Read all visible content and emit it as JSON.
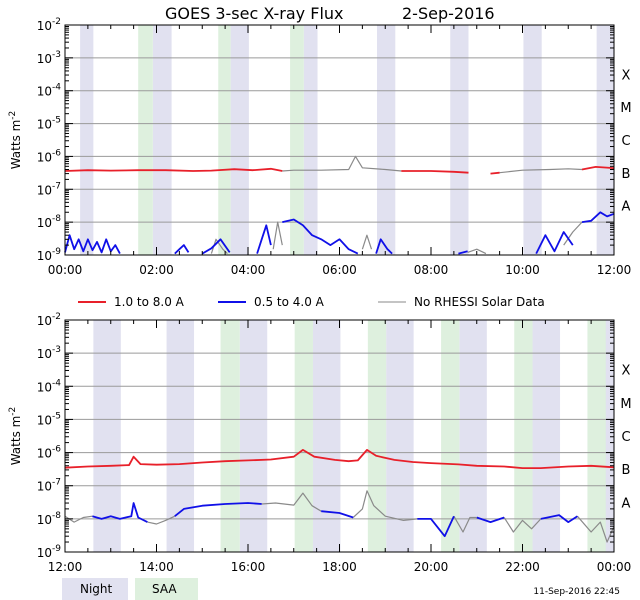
{
  "title": "GOES 3-sec X-ray Flux",
  "date": "2-Sep-2016",
  "footer_timestamp": "11-Sep-2016 22:45",
  "colors": {
    "long": "#e8202a",
    "short": "#1010e8",
    "no_rhessi": "#8a8a8a",
    "night": "#e1e1f0",
    "saa": "#def0de",
    "grid": "#9a9a9a"
  },
  "legend": {
    "long_label": "1.0 to 8.0 A",
    "short_label": "0.5 to 4.0 A",
    "no_rhessi_label": "No RHESSI Solar Data",
    "night_label": "Night",
    "saa_label": "SAA"
  },
  "chart_data": [
    {
      "type": "line",
      "id": "top",
      "title": "GOES 3-sec X-ray Flux 2-Sep-2016",
      "ylabel": "Watts m-2",
      "yscale": "log",
      "ylim": [
        1e-09,
        0.01
      ],
      "xlim": [
        0,
        12
      ],
      "ytick_exponents": [
        -9,
        -8,
        -7,
        -6,
        -5,
        -4,
        -3,
        -2
      ],
      "xticks": [
        0,
        2,
        4,
        6,
        8,
        10,
        12
      ],
      "xtick_labels": [
        "00:00",
        "02:00",
        "04:00",
        "06:00",
        "08:00",
        "10:00",
        "12:00"
      ],
      "class_labels": [
        {
          "label": "A",
          "exp": -8
        },
        {
          "label": "B",
          "exp": -7
        },
        {
          "label": "C",
          "exp": -6
        },
        {
          "label": "M",
          "exp": -5
        },
        {
          "label": "X",
          "exp": -4
        }
      ],
      "night": [
        [
          0.33,
          0.62
        ],
        [
          1.92,
          2.33
        ],
        [
          3.62,
          4.02
        ],
        [
          5.22,
          5.52
        ],
        [
          6.82,
          7.22
        ],
        [
          8.42,
          8.82
        ],
        [
          10.02,
          10.42
        ],
        [
          11.62,
          12.0
        ]
      ],
      "saa": [
        [
          1.6,
          1.92
        ],
        [
          3.35,
          3.62
        ],
        [
          4.92,
          5.22
        ]
      ],
      "long": {
        "name": "1.0 to 8.0 A",
        "segments": [
          [
            [
              0.0,
              3.6e-07
            ],
            [
              0.5,
              3.8e-07
            ],
            [
              1.0,
              3.7e-07
            ],
            [
              1.6,
              3.8e-07
            ],
            [
              2.2,
              3.8e-07
            ],
            [
              2.8,
              3.6e-07
            ],
            [
              3.2,
              3.7e-07
            ],
            [
              3.7,
              4.1e-07
            ],
            [
              4.1,
              3.8e-07
            ],
            [
              4.5,
              4.2e-07
            ],
            [
              4.75,
              3.6e-07
            ]
          ],
          [
            [
              7.35,
              3.6e-07
            ],
            [
              8.0,
              3.6e-07
            ],
            [
              8.5,
              3.4e-07
            ],
            [
              8.82,
              3.2e-07
            ]
          ],
          [
            [
              9.3,
              3e-07
            ],
            [
              9.5,
              3.2e-07
            ]
          ],
          [
            [
              11.3,
              4e-07
            ],
            [
              11.6,
              4.8e-07
            ],
            [
              12.0,
              4.4e-07
            ]
          ]
        ]
      },
      "short": {
        "name": "0.5 to 4.0 A",
        "segments": [
          [
            [
              0.0,
              1.2e-09
            ],
            [
              0.1,
              4e-09
            ],
            [
              0.2,
              1.5e-09
            ],
            [
              0.3,
              3e-09
            ],
            [
              0.4,
              1.3e-09
            ],
            [
              0.5,
              3e-09
            ],
            [
              0.6,
              1.4e-09
            ],
            [
              0.7,
              2.5e-09
            ],
            [
              0.8,
              1.2e-09
            ],
            [
              0.9,
              3e-09
            ],
            [
              1.0,
              1.3e-09
            ],
            [
              1.1,
              2e-09
            ],
            [
              1.2,
              1.1e-09
            ]
          ],
          [
            [
              2.4,
              1.1e-09
            ],
            [
              2.5,
              1.5e-09
            ],
            [
              2.6,
              2e-09
            ],
            [
              2.7,
              1.2e-09
            ]
          ],
          [
            [
              3.0,
              1.1e-09
            ],
            [
              3.2,
              1.6e-09
            ],
            [
              3.4,
              3e-09
            ],
            [
              3.6,
              1.2e-09
            ]
          ],
          [
            [
              4.2,
              1.1e-09
            ],
            [
              4.3,
              3e-09
            ],
            [
              4.4,
              8e-09
            ],
            [
              4.5,
              2e-09
            ]
          ],
          [
            [
              4.75,
              1e-08
            ],
            [
              5.0,
              1.2e-08
            ],
            [
              5.2,
              8e-09
            ],
            [
              5.4,
              4e-09
            ],
            [
              5.6,
              3e-09
            ],
            [
              5.8,
              2e-09
            ],
            [
              6.0,
              3e-09
            ],
            [
              6.2,
              1.5e-09
            ],
            [
              6.4,
              1.1e-09
            ]
          ],
          [
            [
              6.8,
              1.1e-09
            ],
            [
              6.9,
              3e-09
            ],
            [
              7.05,
              1.5e-09
            ],
            [
              7.15,
              1.1e-09
            ]
          ],
          [
            [
              8.6,
              1.1e-09
            ],
            [
              8.8,
              1.3e-09
            ]
          ],
          [
            [
              10.3,
              1.1e-09
            ],
            [
              10.5,
              4e-09
            ],
            [
              10.7,
              1.3e-09
            ],
            [
              10.9,
              5e-09
            ],
            [
              11.1,
              2e-09
            ]
          ],
          [
            [
              11.3,
              1e-08
            ],
            [
              11.5,
              1.1e-08
            ],
            [
              11.7,
              2e-08
            ],
            [
              11.85,
              1.5e-08
            ],
            [
              12.0,
              1.8e-08
            ]
          ]
        ]
      },
      "no_rhessi": {
        "name": "No RHESSI Solar Data",
        "segments": [
          [
            [
              4.75,
              3.6e-07
            ],
            [
              5.0,
              3.8e-07
            ],
            [
              5.6,
              3.8e-07
            ],
            [
              6.2,
              4e-07
            ],
            [
              6.35,
              1e-06
            ],
            [
              6.5,
              4.5e-07
            ],
            [
              7.0,
              4e-07
            ],
            [
              7.35,
              3.6e-07
            ]
          ],
          [
            [
              9.5,
              3.2e-07
            ],
            [
              10.0,
              3.8e-07
            ],
            [
              10.6,
              4e-07
            ],
            [
              11.0,
              4.2e-07
            ],
            [
              11.3,
              4e-07
            ]
          ],
          [
            [
              3.2,
              1.1e-09
            ],
            [
              3.3,
              3e-09
            ],
            [
              3.45,
              1.5e-09
            ],
            [
              3.55,
              1.1e-09
            ]
          ],
          [
            [
              4.55,
              1.5e-09
            ],
            [
              4.65,
              1e-08
            ],
            [
              4.75,
              2e-09
            ]
          ],
          [
            [
              6.5,
              1.5e-09
            ],
            [
              6.6,
              4e-09
            ],
            [
              6.7,
              1.5e-09
            ]
          ],
          [
            [
              8.8,
              1.2e-09
            ],
            [
              9.0,
              1.5e-09
            ],
            [
              9.2,
              1.1e-09
            ]
          ],
          [
            [
              10.9,
              2e-09
            ],
            [
              11.1,
              5e-09
            ],
            [
              11.3,
              1e-08
            ]
          ]
        ]
      }
    },
    {
      "type": "line",
      "id": "bottom",
      "ylabel": "Watts m-2",
      "yscale": "log",
      "ylim": [
        1e-09,
        0.01
      ],
      "xlim": [
        12,
        24
      ],
      "ytick_exponents": [
        -9,
        -8,
        -7,
        -6,
        -5,
        -4,
        -3,
        -2
      ],
      "xticks": [
        12,
        14,
        16,
        18,
        20,
        22,
        24
      ],
      "xtick_labels": [
        "12:00",
        "14:00",
        "16:00",
        "18:00",
        "20:00",
        "22:00",
        "00:00"
      ],
      "class_labels": [
        {
          "label": "A",
          "exp": -8
        },
        {
          "label": "B",
          "exp": -7
        },
        {
          "label": "C",
          "exp": -6
        },
        {
          "label": "M",
          "exp": -5
        },
        {
          "label": "X",
          "exp": -4
        }
      ],
      "night": [
        [
          12.62,
          13.22
        ],
        [
          14.22,
          14.82
        ],
        [
          15.82,
          16.42
        ],
        [
          17.42,
          18.02
        ],
        [
          19.02,
          19.62
        ],
        [
          20.62,
          21.22
        ],
        [
          22.22,
          22.82
        ],
        [
          23.42,
          24.0
        ]
      ],
      "saa": [
        [
          15.4,
          15.82
        ],
        [
          17.02,
          17.42
        ],
        [
          18.62,
          19.02
        ],
        [
          20.22,
          20.62
        ],
        [
          21.82,
          22.22
        ],
        [
          23.42,
          23.82
        ]
      ],
      "long": {
        "name": "1.0 to 8.0 A",
        "segments": [
          [
            [
              12.0,
              3.5e-07
            ],
            [
              12.5,
              3.8e-07
            ],
            [
              13.0,
              4e-07
            ],
            [
              13.4,
              4.2e-07
            ],
            [
              13.5,
              7.5e-07
            ],
            [
              13.65,
              4.5e-07
            ],
            [
              14.0,
              4.3e-07
            ],
            [
              14.5,
              4.5e-07
            ],
            [
              15.0,
              5e-07
            ],
            [
              15.5,
              5.5e-07
            ],
            [
              16.0,
              5.8e-07
            ],
            [
              16.5,
              6.2e-07
            ],
            [
              17.0,
              7.5e-07
            ],
            [
              17.2,
              1.2e-06
            ],
            [
              17.45,
              7.5e-07
            ],
            [
              17.9,
              6e-07
            ],
            [
              18.2,
              5.5e-07
            ],
            [
              18.4,
              5.8e-07
            ],
            [
              18.6,
              1.2e-06
            ],
            [
              18.8,
              8e-07
            ],
            [
              19.2,
              6e-07
            ],
            [
              19.6,
              5.2e-07
            ],
            [
              20.0,
              4.8e-07
            ],
            [
              20.6,
              4.4e-07
            ],
            [
              21.0,
              4e-07
            ],
            [
              21.6,
              3.8e-07
            ],
            [
              22.0,
              3.4e-07
            ],
            [
              22.4,
              3.4e-07
            ],
            [
              23.0,
              3.8e-07
            ],
            [
              23.5,
              4e-07
            ],
            [
              24.0,
              3.6e-07
            ]
          ]
        ]
      },
      "short": {
        "name": "0.5 to 4.0 A",
        "segments": [
          [
            [
              12.6,
              1.2e-08
            ],
            [
              12.8,
              1e-08
            ],
            [
              13.0,
              1.2e-08
            ],
            [
              13.2,
              1e-08
            ],
            [
              13.45,
              1.2e-08
            ],
            [
              13.5,
              3e-08
            ],
            [
              13.6,
              1.1e-08
            ],
            [
              13.8,
              8e-09
            ]
          ],
          [
            [
              14.4,
              1.2e-08
            ],
            [
              14.6,
              2e-08
            ],
            [
              15.0,
              2.5e-08
            ],
            [
              15.5,
              2.8e-08
            ],
            [
              16.0,
              3e-08
            ],
            [
              16.3,
              2.8e-08
            ]
          ],
          [
            [
              17.6,
              1.7e-08
            ],
            [
              18.0,
              1.5e-08
            ],
            [
              18.3,
              1.1e-08
            ]
          ],
          [
            [
              19.7,
              1e-08
            ],
            [
              20.0,
              1e-08
            ],
            [
              20.3,
              3e-09
            ],
            [
              20.5,
              1.2e-08
            ]
          ],
          [
            [
              21.0,
              1.1e-08
            ],
            [
              21.3,
              8e-09
            ],
            [
              21.6,
              1.1e-08
            ]
          ],
          [
            [
              22.4,
              1e-08
            ],
            [
              22.8,
              1.3e-08
            ],
            [
              23.0,
              8e-09
            ],
            [
              23.2,
              1.2e-08
            ]
          ]
        ]
      },
      "no_rhessi": {
        "name": "No RHESSI Solar Data",
        "segments": [
          [
            [
              12.0,
              1.2e-08
            ],
            [
              12.2,
              8e-09
            ],
            [
              12.4,
              1.1e-08
            ],
            [
              12.6,
              1.2e-08
            ]
          ],
          [
            [
              13.8,
              8e-09
            ],
            [
              14.0,
              7e-09
            ],
            [
              14.2,
              9e-09
            ],
            [
              14.4,
              1.2e-08
            ]
          ],
          [
            [
              16.3,
              2.8e-08
            ],
            [
              16.6,
              3e-08
            ],
            [
              17.0,
              2.6e-08
            ],
            [
              17.2,
              6e-08
            ],
            [
              17.4,
              2.5e-08
            ],
            [
              17.6,
              1.7e-08
            ]
          ],
          [
            [
              18.3,
              1.1e-08
            ],
            [
              18.5,
              2e-08
            ],
            [
              18.6,
              7e-08
            ],
            [
              18.75,
              2.5e-08
            ],
            [
              19.0,
              1.2e-08
            ],
            [
              19.4,
              9e-09
            ],
            [
              19.7,
              1e-08
            ]
          ],
          [
            [
              20.5,
              1.2e-08
            ],
            [
              20.7,
              4e-09
            ],
            [
              20.85,
              1.1e-08
            ],
            [
              21.0,
              1.1e-08
            ]
          ],
          [
            [
              21.6,
              1.1e-08
            ],
            [
              21.8,
              4e-09
            ],
            [
              22.0,
              9e-09
            ],
            [
              22.2,
              5e-09
            ],
            [
              22.4,
              1e-08
            ]
          ],
          [
            [
              23.2,
              1.2e-08
            ],
            [
              23.5,
              4e-09
            ],
            [
              23.7,
              8e-09
            ],
            [
              23.85,
              2e-09
            ],
            [
              24.0,
              6e-09
            ]
          ]
        ]
      }
    }
  ]
}
